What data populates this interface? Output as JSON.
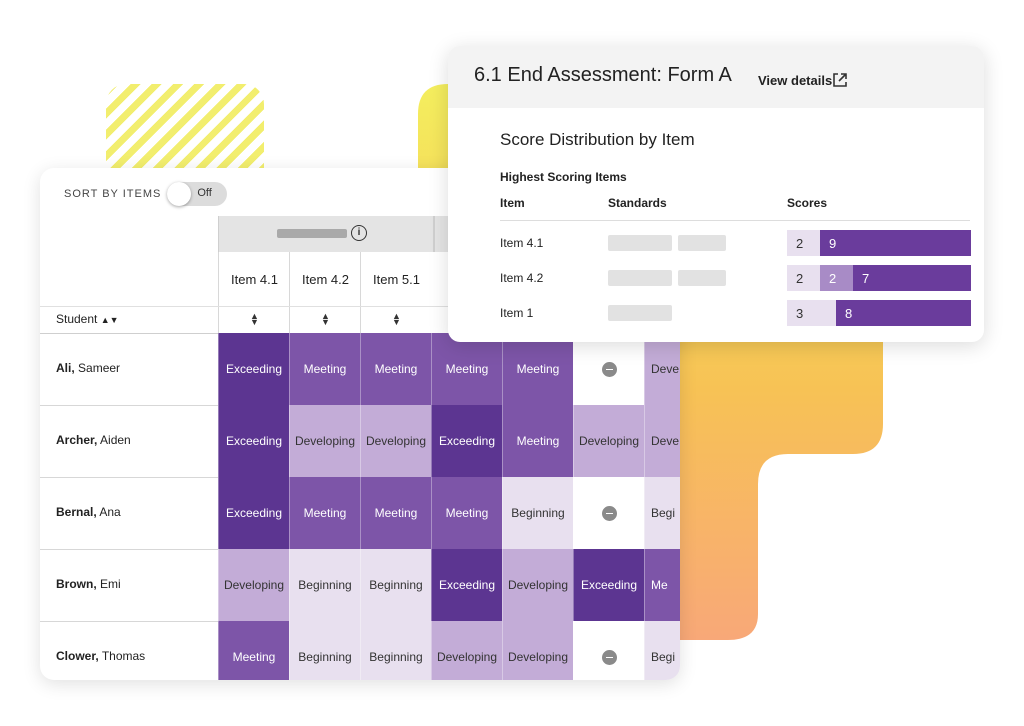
{
  "sort_toggle": {
    "label": "SORT BY ITEMS",
    "state": "Off"
  },
  "grid": {
    "student_header": "Student",
    "item_headers": [
      "Item 4.1",
      "Item 4.2",
      "Item 5.1"
    ],
    "rows": [
      {
        "last": "Ali,",
        "first": "Sameer",
        "cells": [
          "Exceeding",
          "Meeting",
          "Meeting",
          "Meeting",
          "Meeting",
          "",
          "Deve"
        ]
      },
      {
        "last": "Archer,",
        "first": "Aiden",
        "cells": [
          "Exceeding",
          "Developing",
          "Developing",
          "Exceeding",
          "Meeting",
          "Developing",
          "Deve"
        ]
      },
      {
        "last": "Bernal,",
        "first": "Ana",
        "cells": [
          "Exceeding",
          "Meeting",
          "Meeting",
          "Meeting",
          "Beginning",
          "",
          "Begi"
        ]
      },
      {
        "last": "Brown,",
        "first": "Emi",
        "cells": [
          "Developing",
          "Beginning",
          "Beginning",
          "Exceeding",
          "Developing",
          "Exceeding",
          "Me"
        ]
      },
      {
        "last": "Clower,",
        "first": "Thomas",
        "cells": [
          "Meeting",
          "Beginning",
          "Beginning",
          "Developing",
          "Developing",
          "",
          "Begi"
        ]
      }
    ]
  },
  "assessment": {
    "title": "6.1 End Assessment: Form A",
    "view_details": "View details",
    "section_title": "Score Distribution by Item",
    "subsection": "Highest Scoring Items",
    "columns": {
      "item": "Item",
      "standards": "Standards",
      "scores": "Scores"
    },
    "items": [
      {
        "label": "Item 4.1",
        "scores": [
          "2",
          "9"
        ]
      },
      {
        "label": "Item 4.2",
        "scores": [
          "2",
          "2",
          "7"
        ]
      },
      {
        "label": "Item 1",
        "scores": [
          "3",
          "8"
        ]
      }
    ]
  },
  "colors": {
    "exceeding": "#5c3591",
    "meeting": "#7d55a8",
    "developing": "#c3acd7",
    "beginning": "#e8e0ef"
  }
}
